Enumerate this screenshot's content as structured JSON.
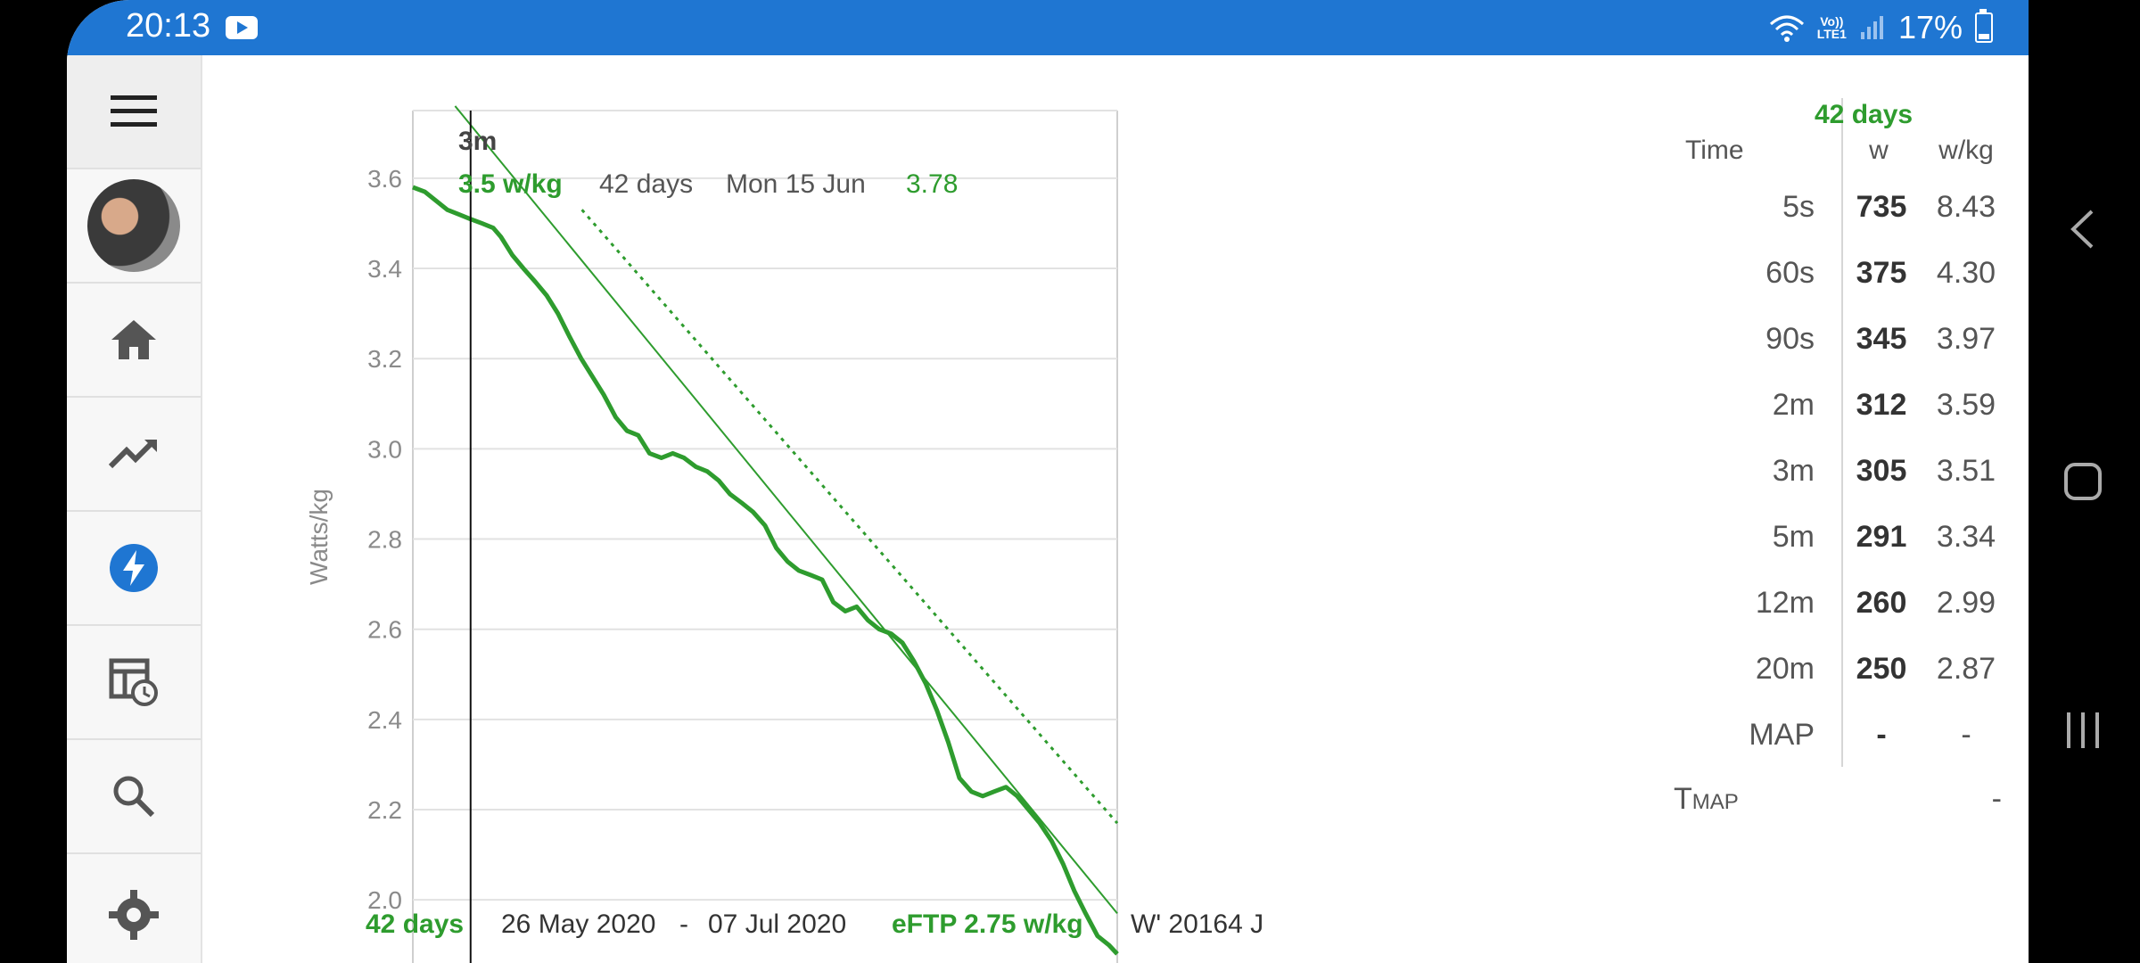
{
  "status_bar": {
    "time": "20:13",
    "lte_top": "Vo))",
    "lte_bottom": "LTE1",
    "battery": "17%"
  },
  "nav": {
    "items": [
      {
        "name": "menu-icon"
      },
      {
        "name": "avatar"
      },
      {
        "name": "home-icon"
      },
      {
        "name": "trend-icon"
      },
      {
        "name": "power-icon"
      },
      {
        "name": "table-clock-icon"
      },
      {
        "name": "search-icon"
      },
      {
        "name": "settings-icon"
      }
    ],
    "active_color": "#1f76d2"
  },
  "chart_data": {
    "type": "line",
    "ylabel": "Watts/kg",
    "ylim": [
      1.86,
      3.75
    ],
    "y_ticks": [
      "3.6",
      "3.4",
      "3.2",
      "3.0",
      "2.8",
      "2.6",
      "2.4",
      "2.2",
      "2.0"
    ],
    "grid": true,
    "cursor": {
      "duration": "3m",
      "value": "3.5 w/kg",
      "period": "42 days",
      "date": "Mon 15 Jun",
      "model_value": "3.78"
    },
    "footer": {
      "period": "42 days",
      "start": "26 May 2020",
      "separator": "-",
      "end": "07 Jul 2020",
      "eftp": "eFTP 2.75 w/kg",
      "wprime": "W' 20164 J"
    },
    "series": [
      {
        "color": "#2e9c2e",
        "x_frac": [
          0,
          0.017,
          0.033,
          0.049,
          0.065,
          0.081,
          0.098,
          0.114,
          0.125,
          0.141,
          0.157,
          0.174,
          0.19,
          0.206,
          0.222,
          0.239,
          0.255,
          0.271,
          0.288,
          0.304,
          0.32,
          0.336,
          0.353,
          0.369,
          0.385,
          0.402,
          0.418,
          0.434,
          0.45,
          0.467,
          0.483,
          0.5,
          0.516,
          0.532,
          0.548,
          0.565,
          0.581,
          0.597,
          0.614,
          0.63,
          0.646,
          0.662,
          0.679,
          0.695,
          0.711,
          0.728,
          0.744,
          0.76,
          0.776,
          0.793,
          0.809,
          0.825,
          0.842,
          0.858,
          0.874,
          0.89,
          0.907,
          0.923,
          0.939,
          0.955,
          0.972,
          0.988,
          1.0
        ],
        "values": [
          3.58,
          3.57,
          3.55,
          3.53,
          3.52,
          3.51,
          3.5,
          3.49,
          3.47,
          3.43,
          3.4,
          3.37,
          3.34,
          3.3,
          3.25,
          3.2,
          3.16,
          3.12,
          3.07,
          3.04,
          3.03,
          2.99,
          2.98,
          2.99,
          2.98,
          2.96,
          2.95,
          2.93,
          2.9,
          2.88,
          2.86,
          2.83,
          2.78,
          2.75,
          2.73,
          2.72,
          2.71,
          2.66,
          2.64,
          2.65,
          2.62,
          2.6,
          2.59,
          2.57,
          2.53,
          2.48,
          2.42,
          2.35,
          2.27,
          2.24,
          2.23,
          2.24,
          2.25,
          2.23,
          2.2,
          2.17,
          2.13,
          2.08,
          2.02,
          1.97,
          1.92,
          1.9,
          1.88
        ]
      },
      {
        "style": "thin-solid",
        "color": "#2e9c2e",
        "x_frac": [
          0.06,
          1.0
        ],
        "values": [
          3.76,
          1.97
        ]
      },
      {
        "style": "dotted",
        "color": "#2e9c2e",
        "x_frac": [
          0.24,
          1.0
        ],
        "values": [
          3.53,
          2.17
        ]
      }
    ],
    "cursor_x_frac": 0.082
  },
  "stats": {
    "header_period": "42 days",
    "col_time": "Time",
    "col_w": "w",
    "col_wkg": "w/kg",
    "rows": [
      {
        "time": "5s",
        "w": "735",
        "wkg": "8.43"
      },
      {
        "time": "60s",
        "w": "375",
        "wkg": "4.30"
      },
      {
        "time": "90s",
        "w": "345",
        "wkg": "3.97"
      },
      {
        "time": "2m",
        "w": "312",
        "wkg": "3.59"
      },
      {
        "time": "3m",
        "w": "305",
        "wkg": "3.51"
      },
      {
        "time": "5m",
        "w": "291",
        "wkg": "3.34"
      },
      {
        "time": "12m",
        "w": "260",
        "wkg": "2.99"
      },
      {
        "time": "20m",
        "w": "250",
        "wkg": "2.87"
      },
      {
        "time": "MAP",
        "w": "-",
        "wkg": "-"
      }
    ],
    "tmap_label": "T",
    "tmap_sub": "MAP",
    "tmap_value": "-"
  }
}
